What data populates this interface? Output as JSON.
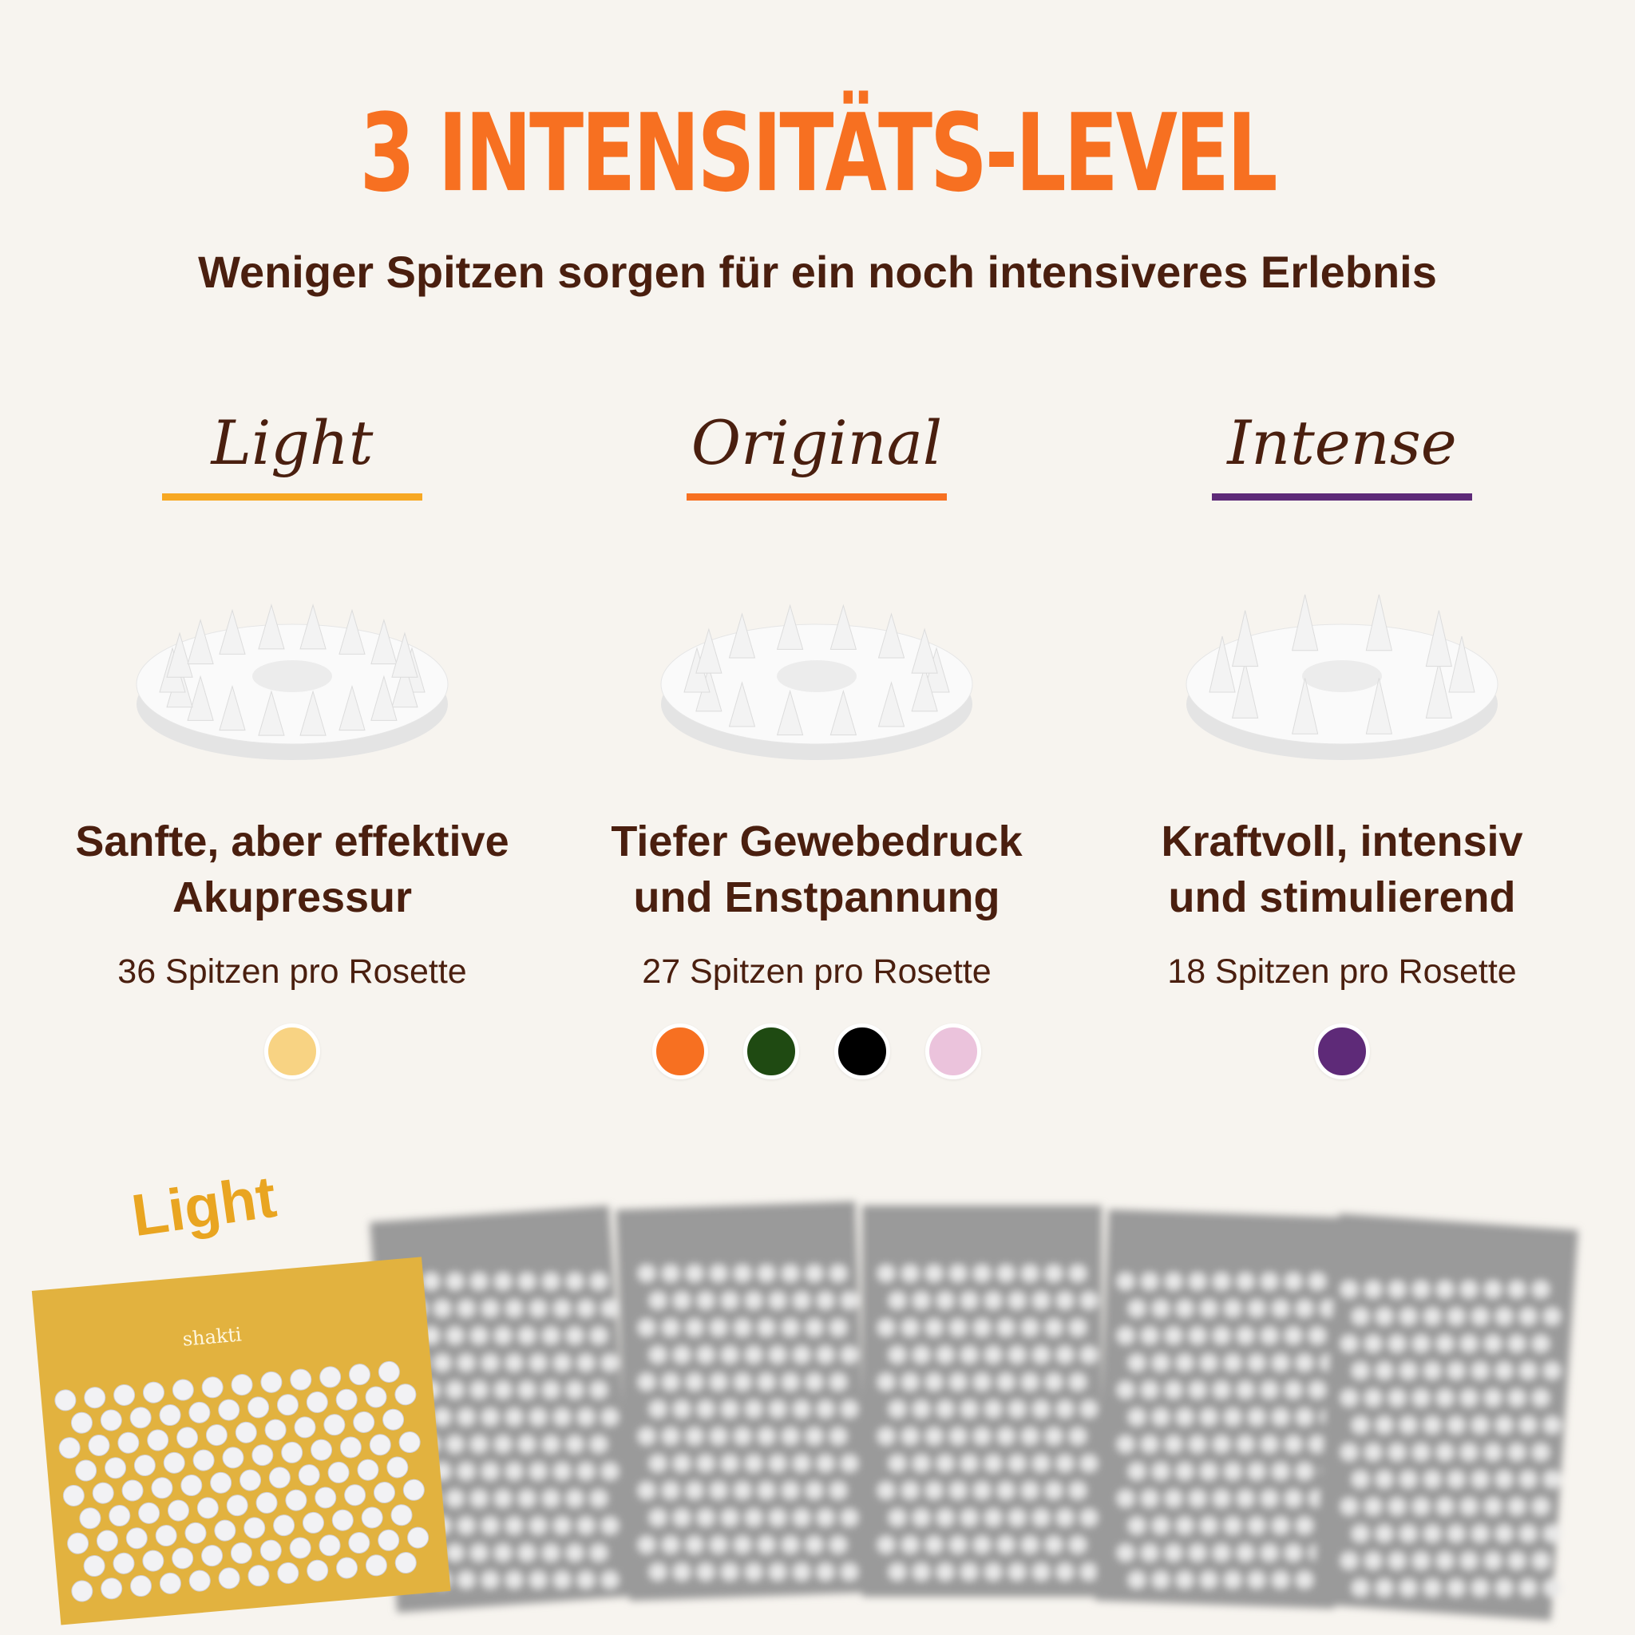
{
  "title": "3 INTENSITÄTS-LEVEL",
  "subtitle": "Weniger Spitzen sorgen für ein noch intensiveres Erlebnis",
  "levels": [
    {
      "name": "Light",
      "accent": "#f7a823",
      "headline_1": "Sanfte, aber effektive",
      "headline_2": "Akupressur",
      "spikes": "36 Spitzen pro Rosette",
      "colors": [
        "#f8d383"
      ]
    },
    {
      "name": "Original",
      "accent": "#f77021",
      "headline_1": "Tiefer Gewebedruck",
      "headline_2": "und Enstpannung",
      "spikes": "27 Spitzen pro Rosette",
      "colors": [
        "#f77021",
        "#1f4a12",
        "#000000",
        "#ebc3dc"
      ]
    },
    {
      "name": "Intense",
      "accent": "#5e2a78",
      "headline_1": "Kraftvoll, intensiv",
      "headline_2": "und stimulierend",
      "spikes": "18 Spitzen pro Rosette",
      "colors": [
        "#5e2a78"
      ]
    }
  ],
  "mat": {
    "tag": "Light",
    "brand": "shakti",
    "color": "#e2b23f"
  }
}
